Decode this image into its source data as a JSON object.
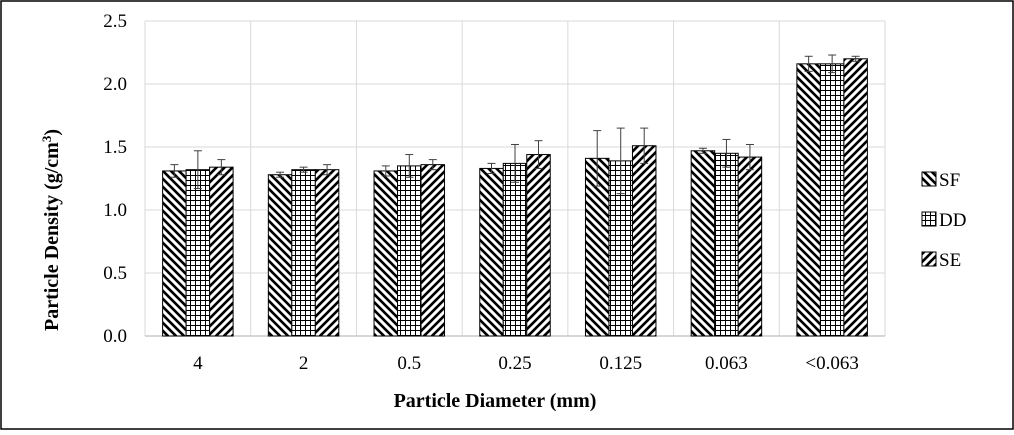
{
  "chart_data": {
    "type": "bar",
    "title": "",
    "xlabel": "Particle Diameter (mm)",
    "ylabel_main": "Particle Density (g/cm",
    "ylabel_sup": "3",
    "ylabel_close": ")",
    "ylim": [
      0,
      2.5
    ],
    "yticks": [
      0.0,
      0.5,
      1.0,
      1.5,
      2.0,
      2.5
    ],
    "ytick_labels": [
      "0.0",
      "0.5",
      "1.0",
      "1.5",
      "2.0",
      "2.5"
    ],
    "categories": [
      "4",
      "2",
      "0.5",
      "0.25",
      "0.125",
      "0.063",
      "<0.063"
    ],
    "grid": true,
    "legend_position": "right",
    "series": [
      {
        "name": "SF",
        "pattern": "back-diagonal",
        "values": [
          1.31,
          1.28,
          1.31,
          1.33,
          1.41,
          1.47,
          2.16
        ],
        "errors": [
          0.05,
          0.02,
          0.04,
          0.04,
          0.22,
          0.02,
          0.06
        ]
      },
      {
        "name": "DD",
        "pattern": "grid",
        "values": [
          1.32,
          1.32,
          1.35,
          1.37,
          1.39,
          1.45,
          2.16
        ],
        "errors": [
          0.15,
          0.02,
          0.09,
          0.15,
          0.26,
          0.11,
          0.07
        ]
      },
      {
        "name": "SE",
        "pattern": "forward-diagonal",
        "values": [
          1.34,
          1.32,
          1.36,
          1.44,
          1.51,
          1.42,
          2.2
        ],
        "errors": [
          0.06,
          0.04,
          0.04,
          0.11,
          0.14,
          0.1,
          0.02
        ]
      }
    ]
  },
  "colors": {
    "ink": "#000000",
    "grid": "#d9d9d9",
    "frame": "#000000",
    "axis": "#bfbfbf"
  }
}
